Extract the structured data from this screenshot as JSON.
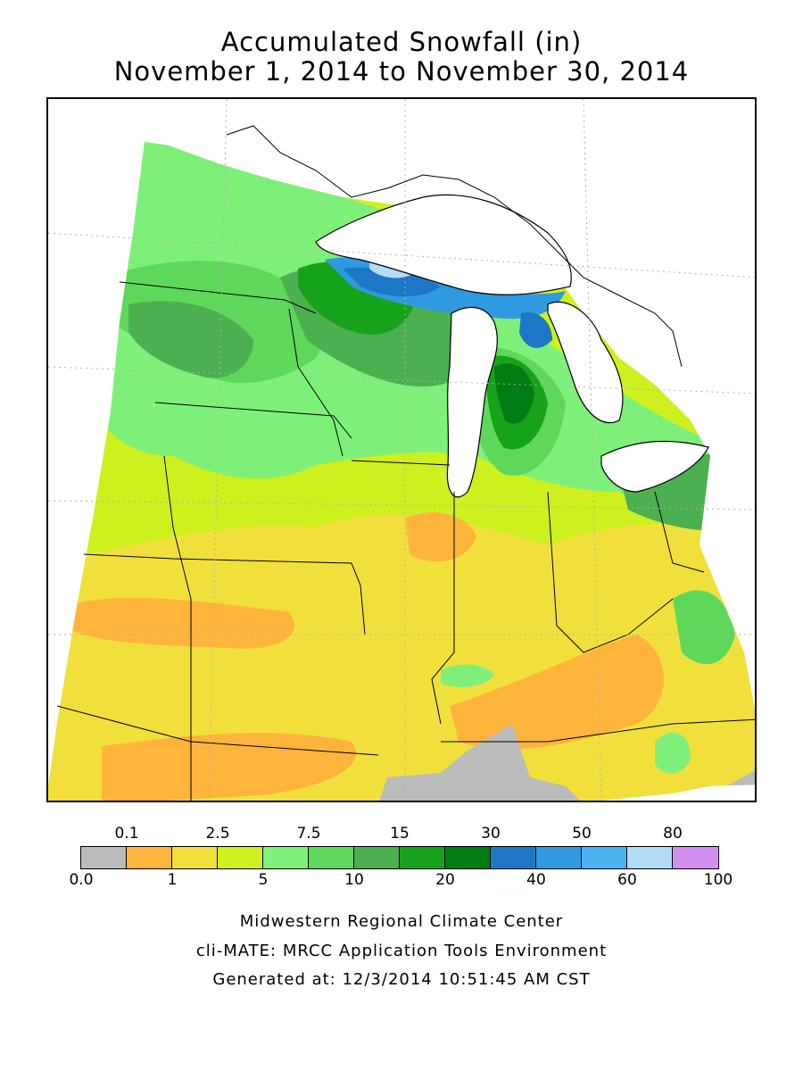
{
  "title": {
    "line1": "Accumulated Snowfall (in)",
    "line2": "November 1, 2014 to November 30, 2014"
  },
  "legend": {
    "top_labels": [
      "0.1",
      "2.5",
      "7.5",
      "15",
      "30",
      "50",
      "80"
    ],
    "bottom_labels": [
      "0.0",
      "1",
      "5",
      "10",
      "20",
      "40",
      "60",
      "100"
    ],
    "colors": [
      "#bbbbbb",
      "#ffb43c",
      "#f1e03c",
      "#cdf01e",
      "#7ef07a",
      "#5ed85a",
      "#4caf50",
      "#17a21b",
      "#007d12",
      "#1c78c6",
      "#2f9ae0",
      "#4ab4f2",
      "#b3dcf7",
      "#d38ff0"
    ]
  },
  "credits": {
    "line1": "Midwestern Regional Climate Center",
    "line2": "cli-MATE: MRCC Application Tools Environment",
    "line3": "Generated at: 12/3/2014 10:51:45 AM CST"
  },
  "map": {
    "region": "Upper Midwest / Great Lakes",
    "ranges_in": [
      "0.0-0.1",
      "0.1-1",
      "1-2.5",
      "2.5-5",
      "5-7.5",
      "7.5-10",
      "10-15",
      "15-20",
      "20-30",
      "30-40",
      "40-50"
    ]
  }
}
